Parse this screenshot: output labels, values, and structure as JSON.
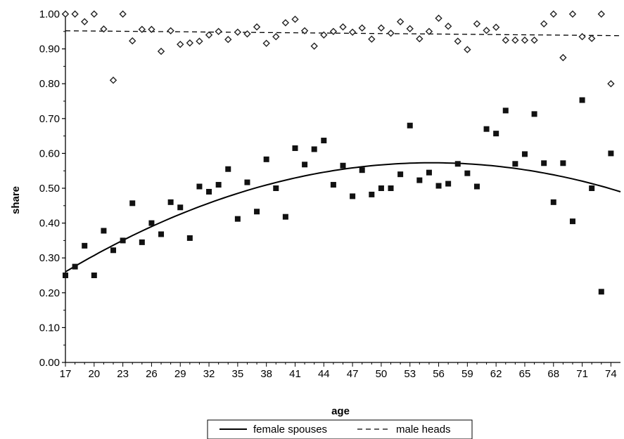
{
  "chart_data": {
    "type": "scatter",
    "xlabel": "age",
    "ylabel": "share",
    "xlim": [
      17,
      75
    ],
    "ylim": [
      0,
      1
    ],
    "x_ticks": [
      17,
      20,
      23,
      26,
      29,
      32,
      35,
      38,
      41,
      44,
      47,
      50,
      53,
      56,
      59,
      62,
      65,
      68,
      71,
      74
    ],
    "y_ticks": [
      "0.00",
      "0.10",
      "0.20",
      "0.30",
      "0.40",
      "0.50",
      "0.60",
      "0.70",
      "0.80",
      "0.90",
      "1.00"
    ],
    "grid": false,
    "legend_position": "bottom",
    "series": [
      {
        "name": "female spouses",
        "style": "solid-line",
        "marker": "filled-square",
        "points": [
          [
            17,
            0.25
          ],
          [
            18,
            0.275
          ],
          [
            19,
            0.335
          ],
          [
            20,
            0.25
          ],
          [
            21,
            0.378
          ],
          [
            22,
            0.322
          ],
          [
            23,
            0.35
          ],
          [
            24,
            0.457
          ],
          [
            25,
            0.345
          ],
          [
            26,
            0.4
          ],
          [
            27,
            0.368
          ],
          [
            28,
            0.46
          ],
          [
            29,
            0.445
          ],
          [
            30,
            0.357
          ],
          [
            31,
            0.505
          ],
          [
            32,
            0.49
          ],
          [
            33,
            0.51
          ],
          [
            34,
            0.555
          ],
          [
            35,
            0.412
          ],
          [
            36,
            0.517
          ],
          [
            37,
            0.433
          ],
          [
            38,
            0.583
          ],
          [
            39,
            0.5
          ],
          [
            40,
            0.418
          ],
          [
            41,
            0.615
          ],
          [
            42,
            0.568
          ],
          [
            43,
            0.612
          ],
          [
            44,
            0.637
          ],
          [
            45,
            0.51
          ],
          [
            46,
            0.565
          ],
          [
            47,
            0.477
          ],
          [
            48,
            0.552
          ],
          [
            49,
            0.482
          ],
          [
            50,
            0.5
          ],
          [
            51,
            0.5
          ],
          [
            52,
            0.54
          ],
          [
            53,
            0.68
          ],
          [
            54,
            0.523
          ],
          [
            55,
            0.545
          ],
          [
            56,
            0.507
          ],
          [
            57,
            0.513
          ],
          [
            58,
            0.57
          ],
          [
            59,
            0.543
          ],
          [
            60,
            0.505
          ],
          [
            61,
            0.67
          ],
          [
            62,
            0.657
          ],
          [
            63,
            0.723
          ],
          [
            64,
            0.57
          ],
          [
            65,
            0.598
          ],
          [
            66,
            0.713
          ],
          [
            67,
            0.572
          ],
          [
            68,
            0.46
          ],
          [
            69,
            0.572
          ],
          [
            70,
            0.405
          ],
          [
            71,
            0.753
          ],
          [
            72,
            0.5
          ],
          [
            73,
            0.203
          ],
          [
            74,
            0.6
          ]
        ],
        "fit": {
          "kind": "quadratic",
          "at_x": [
            17,
            56,
            75
          ],
          "y": [
            0.26,
            0.573,
            0.49
          ]
        }
      },
      {
        "name": "male heads",
        "style": "dashed-line",
        "marker": "diamond",
        "points": [
          [
            17,
            1.0
          ],
          [
            18,
            1.0
          ],
          [
            19,
            0.978
          ],
          [
            20,
            1.0
          ],
          [
            21,
            0.957
          ],
          [
            22,
            0.81
          ],
          [
            23,
            1.0
          ],
          [
            24,
            0.923
          ],
          [
            25,
            0.956
          ],
          [
            26,
            0.956
          ],
          [
            27,
            0.893
          ],
          [
            28,
            0.952
          ],
          [
            29,
            0.913
          ],
          [
            30,
            0.917
          ],
          [
            31,
            0.922
          ],
          [
            32,
            0.94
          ],
          [
            33,
            0.95
          ],
          [
            34,
            0.927
          ],
          [
            35,
            0.948
          ],
          [
            36,
            0.943
          ],
          [
            37,
            0.963
          ],
          [
            38,
            0.916
          ],
          [
            39,
            0.935
          ],
          [
            40,
            0.975
          ],
          [
            41,
            0.985
          ],
          [
            42,
            0.952
          ],
          [
            43,
            0.908
          ],
          [
            44,
            0.94
          ],
          [
            45,
            0.95
          ],
          [
            46,
            0.963
          ],
          [
            47,
            0.948
          ],
          [
            48,
            0.96
          ],
          [
            49,
            0.928
          ],
          [
            50,
            0.96
          ],
          [
            51,
            0.945
          ],
          [
            52,
            0.978
          ],
          [
            53,
            0.958
          ],
          [
            54,
            0.929
          ],
          [
            55,
            0.95
          ],
          [
            56,
            0.988
          ],
          [
            57,
            0.965
          ],
          [
            58,
            0.922
          ],
          [
            59,
            0.898
          ],
          [
            60,
            0.972
          ],
          [
            61,
            0.953
          ],
          [
            62,
            0.962
          ],
          [
            63,
            0.925
          ],
          [
            64,
            0.925
          ],
          [
            65,
            0.925
          ],
          [
            66,
            0.925
          ],
          [
            67,
            0.972
          ],
          [
            68,
            1.0
          ],
          [
            69,
            0.875
          ],
          [
            70,
            1.0
          ],
          [
            71,
            0.935
          ],
          [
            72,
            0.93
          ],
          [
            73,
            1.0
          ],
          [
            74,
            0.8
          ]
        ],
        "fit": {
          "kind": "linear",
          "at_x": [
            17,
            75
          ],
          "y": [
            0.952,
            0.938
          ]
        }
      }
    ]
  }
}
